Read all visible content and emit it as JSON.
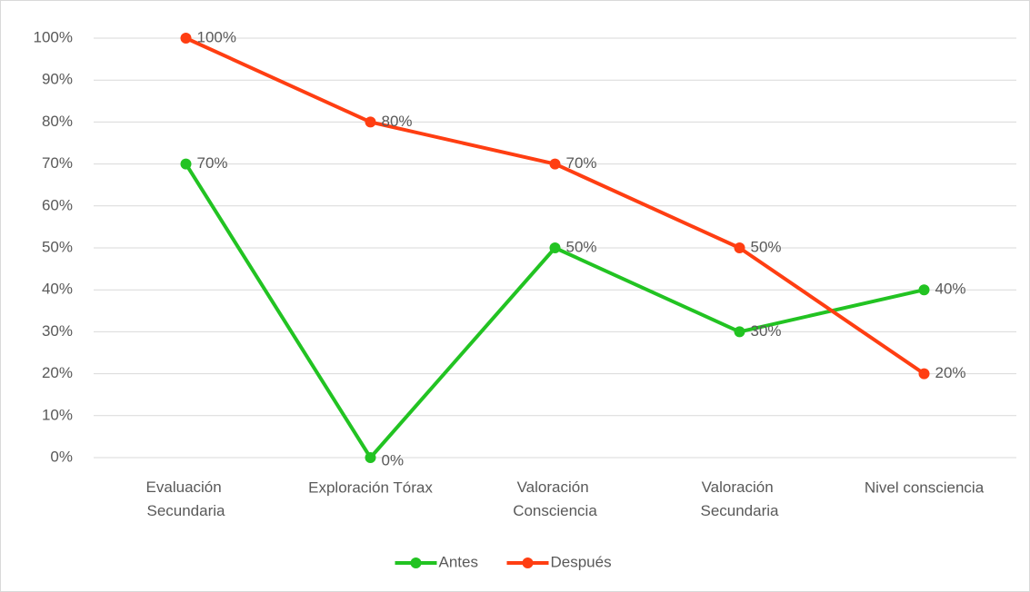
{
  "chart_data": {
    "type": "line",
    "categories": [
      "Evaluación Secundaria",
      "Exploración Tórax",
      "Valoración Consciencia",
      "Valoración Secundaria",
      "Nivel consciencia"
    ],
    "series": [
      {
        "name": "Antes",
        "color": "#22c322",
        "values": [
          70,
          0,
          50,
          30,
          40
        ],
        "value_labels": [
          "70%",
          "0%",
          "50%",
          "30%",
          "40%"
        ]
      },
      {
        "name": "Después",
        "color": "#ff3e12",
        "values": [
          100,
          80,
          70,
          50,
          20
        ],
        "value_labels": [
          "100%",
          "80%",
          "70%",
          "50%",
          "20%"
        ]
      }
    ],
    "ylim": [
      0,
      100
    ],
    "yticks": [
      {
        "value": 0,
        "label": "0%"
      },
      {
        "value": 10,
        "label": "10%"
      },
      {
        "value": 20,
        "label": "20%"
      },
      {
        "value": 30,
        "label": "30%"
      },
      {
        "value": 40,
        "label": "40%"
      },
      {
        "value": 50,
        "label": "50%"
      },
      {
        "value": 60,
        "label": "60%"
      },
      {
        "value": 70,
        "label": "70%"
      },
      {
        "value": 80,
        "label": "80%"
      },
      {
        "value": 90,
        "label": "90%"
      },
      {
        "value": 100,
        "label": "100%"
      }
    ],
    "grid": true,
    "legend": "bottom"
  }
}
